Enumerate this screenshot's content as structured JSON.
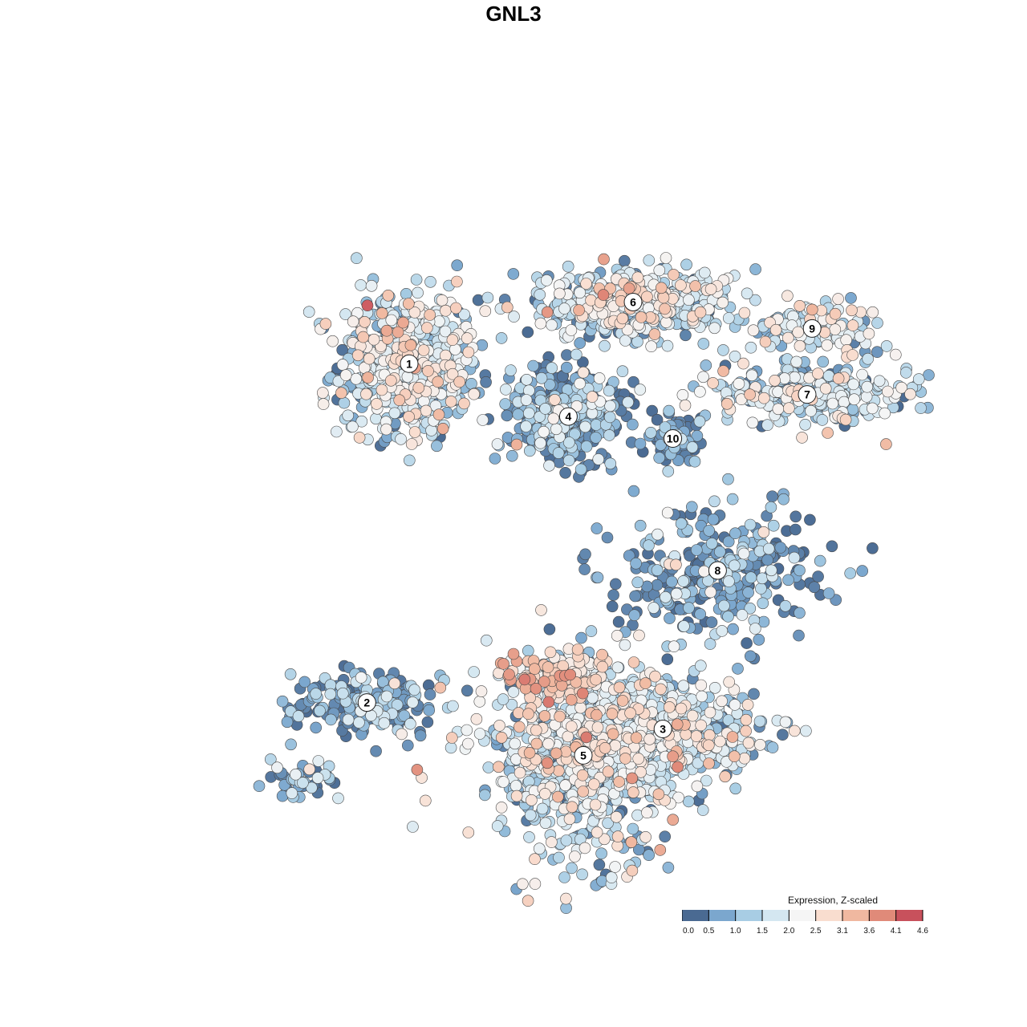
{
  "chart_data": {
    "type": "scatter",
    "title": "GNL3",
    "xlabel": "",
    "ylabel": "",
    "grid": false,
    "legend_placement": "bottom-right",
    "colorbar": {
      "title": "Expression, Z-scaled",
      "ticks": [
        "0.0",
        "0.5",
        "1.0",
        "1.5",
        "2.0",
        "2.5",
        "3.1",
        "3.6",
        "4.1",
        "4.6"
      ],
      "colors": [
        "#4a6a92",
        "#7ba7ce",
        "#a8cde4",
        "#d4e7f1",
        "#f5f5f5",
        "#f9ddcf",
        "#f0b8a0",
        "#e08a79",
        "#c8515c"
      ]
    },
    "clusters": [
      {
        "label": "1",
        "x": -200,
        "y": 470,
        "sx": 70,
        "sy": 80,
        "n": 640,
        "mean": 1.55
      },
      {
        "label": "2",
        "x": -285,
        "y": -300,
        "sx": 75,
        "sy": 40,
        "n": 220,
        "mean": 0.55
      },
      {
        "label": "3",
        "x": 310,
        "y": -360,
        "sx": 100,
        "sy": 55,
        "n": 520,
        "mean": 1.45
      },
      {
        "label": "4",
        "x": 120,
        "y": 350,
        "sx": 55,
        "sy": 55,
        "n": 430,
        "mean": 0.45
      },
      {
        "label": "5",
        "x": 150,
        "y": -420,
        "sx": 95,
        "sy": 110,
        "n": 720,
        "mean": 1.65
      },
      {
        "label": "6",
        "x": 250,
        "y": 610,
        "sx": 95,
        "sy": 40,
        "n": 470,
        "mean": 1.55
      },
      {
        "label": "7",
        "x": 600,
        "y": 400,
        "sx": 105,
        "sy": 35,
        "n": 260,
        "mean": 1.55
      },
      {
        "label": "8",
        "x": 420,
        "y": 0,
        "sx": 110,
        "sy": 70,
        "n": 300,
        "mean": 0.45
      },
      {
        "label": "9",
        "x": 610,
        "y": 550,
        "sx": 70,
        "sy": 30,
        "n": 130,
        "mean": 1.65
      },
      {
        "label": "10",
        "x": 330,
        "y": 300,
        "sx": 30,
        "sy": 30,
        "n": 70,
        "mean": 0.4
      },
      {
        "label": "",
        "x": 95,
        "y": -240,
        "sx": 50,
        "sy": 30,
        "n": 120,
        "mean": 2.6
      },
      {
        "label": "",
        "x": -420,
        "y": -480,
        "sx": 40,
        "sy": 20,
        "n": 40,
        "mean": 0.7
      }
    ],
    "xlim": [
      -700,
      800
    ],
    "ylim": [
      -700,
      950
    ]
  }
}
